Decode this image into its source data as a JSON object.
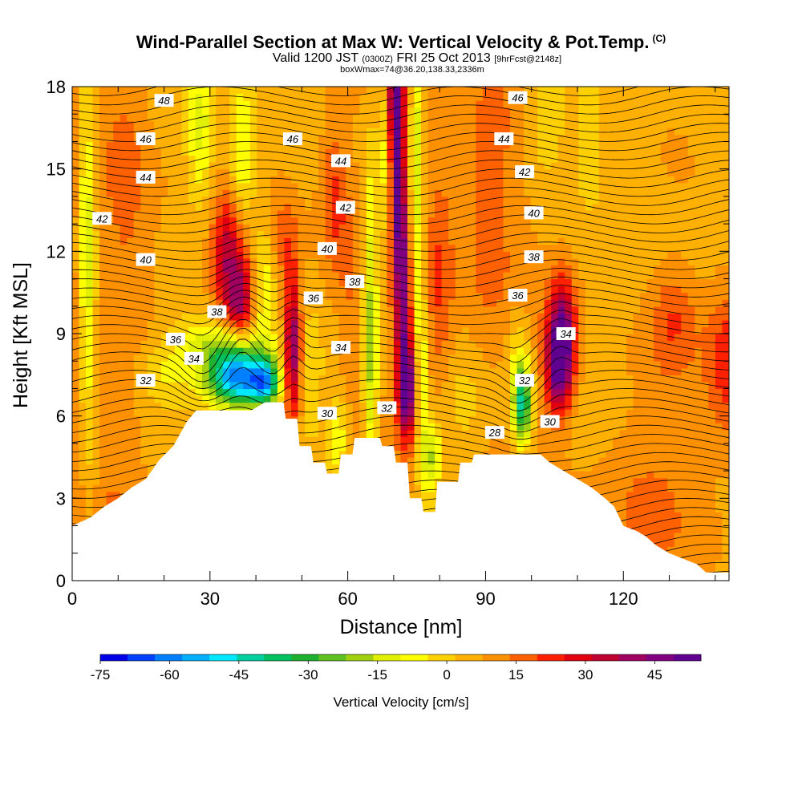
{
  "header": {
    "title": "Wind-Parallel Section at Max W: Vertical Velocity & Pot.Temp.",
    "copyright": "(C)",
    "valid_prefix": "Valid 1200 JST",
    "valid_utc": "(0300Z)",
    "valid_date": "FRI 25 Oct 2013",
    "forecast": "[9hrFcst@2148z]",
    "box_info": "boxWmax=74@36.20,138.33,2336m"
  },
  "chart_data": {
    "type": "heatmap",
    "xlabel": "Distance [nm]",
    "ylabel": "Height [Kft MSL]",
    "xlim": [
      0,
      143
    ],
    "ylim": [
      0,
      18
    ],
    "x_ticks": [
      0,
      30,
      60,
      90,
      120
    ],
    "y_ticks": [
      0,
      3,
      6,
      9,
      12,
      15,
      18
    ],
    "colorbar": {
      "title": "Vertical Velocity [cm/s]",
      "ticks": [
        "-75",
        "-60",
        "-45",
        "-30",
        "-15",
        "0",
        "15",
        "30",
        "45"
      ],
      "range": [
        -75,
        55
      ],
      "colors": [
        "#0000e8",
        "#0040ff",
        "#0080ff",
        "#00b0ff",
        "#00e8ff",
        "#00d0a0",
        "#00c060",
        "#20b030",
        "#60c020",
        "#a0d010",
        "#e0f000",
        "#ffff00",
        "#ffd000",
        "#ffb000",
        "#ff9000",
        "#ff6000",
        "#ff2000",
        "#e00010",
        "#c00030",
        "#a00060",
        "#800080",
        "#600090"
      ]
    },
    "terrain_kft": [
      [
        0,
        2.0
      ],
      [
        4,
        2.3
      ],
      [
        7,
        2.7
      ],
      [
        10,
        3.0
      ],
      [
        13,
        3.4
      ],
      [
        16,
        3.7
      ],
      [
        19,
        4.4
      ],
      [
        22,
        4.9
      ],
      [
        23,
        5.2
      ],
      [
        25,
        5.8
      ],
      [
        27,
        6.2
      ],
      [
        33,
        6.2
      ],
      [
        39,
        6.2
      ],
      [
        42,
        6.5
      ],
      [
        46,
        6.5
      ],
      [
        46.5,
        5.9
      ],
      [
        49,
        5.9
      ],
      [
        49.5,
        4.9
      ],
      [
        52,
        4.9
      ],
      [
        52.5,
        4.3
      ],
      [
        55,
        4.3
      ],
      [
        55.5,
        3.9
      ],
      [
        58,
        3.9
      ],
      [
        58.5,
        4.6
      ],
      [
        61,
        4.6
      ],
      [
        61.5,
        5.2
      ],
      [
        67,
        5.2
      ],
      [
        67.5,
        4.9
      ],
      [
        70,
        4.9
      ],
      [
        70.5,
        4.3
      ],
      [
        73,
        4.3
      ],
      [
        73.5,
        3.0
      ],
      [
        76,
        3.0
      ],
      [
        76.5,
        2.5
      ],
      [
        79,
        2.5
      ],
      [
        79.5,
        3.6
      ],
      [
        84,
        3.6
      ],
      [
        84.5,
        4.3
      ],
      [
        87,
        4.3
      ],
      [
        87.5,
        4.6
      ],
      [
        102,
        4.6
      ],
      [
        104,
        4.3
      ],
      [
        107,
        4.0
      ],
      [
        110,
        3.7
      ],
      [
        113,
        3.4
      ],
      [
        116,
        3.0
      ],
      [
        118,
        2.7
      ],
      [
        120,
        2.0
      ],
      [
        123,
        1.8
      ],
      [
        125,
        1.6
      ],
      [
        127,
        1.3
      ],
      [
        130,
        1.0
      ],
      [
        133,
        0.8
      ],
      [
        136,
        0.6
      ],
      [
        138,
        0.3
      ],
      [
        143,
        0.3
      ]
    ],
    "w_features": [
      {
        "x": 0,
        "y": 10,
        "sx": 4,
        "sy": 12,
        "w": 4
      },
      {
        "x": 3,
        "y": 13,
        "sx": 1.5,
        "sy": 6,
        "w": -18
      },
      {
        "x": 4,
        "y": 9,
        "sx": 2,
        "sy": 8,
        "w": -10
      },
      {
        "x": 12,
        "y": 14,
        "sx": 5,
        "sy": 6,
        "w": 7
      },
      {
        "x": 20,
        "y": 10,
        "sx": 5,
        "sy": 4,
        "w": 2
      },
      {
        "x": 20,
        "y": 7.5,
        "sx": 6,
        "sy": 1.2,
        "w": -12
      },
      {
        "x": 36,
        "y": 7.4,
        "sx": 7,
        "sy": 1.1,
        "w": -68
      },
      {
        "x": 42,
        "y": 7.2,
        "sx": 3,
        "sy": 0.8,
        "w": -40
      },
      {
        "x": 32,
        "y": 8.7,
        "sx": 9,
        "sy": 0.9,
        "w": -20
      },
      {
        "x": 28,
        "y": 16.5,
        "sx": 3,
        "sy": 3,
        "w": -18
      },
      {
        "x": 37,
        "y": 14,
        "sx": 3,
        "sy": 5,
        "w": -22
      },
      {
        "x": 42,
        "y": 11,
        "sx": 2.5,
        "sy": 2.5,
        "w": -18
      },
      {
        "x": 35,
        "y": 11.6,
        "sx": 4,
        "sy": 2.4,
        "w": 38
      },
      {
        "x": 37,
        "y": 10,
        "sx": 2.5,
        "sy": 1.5,
        "w": 26
      },
      {
        "x": 48,
        "y": 8.5,
        "sx": 1.8,
        "sy": 2.4,
        "w": 42
      },
      {
        "x": 46,
        "y": 12.3,
        "sx": 4,
        "sy": 1.8,
        "w": 11
      },
      {
        "x": 52,
        "y": 7,
        "sx": 2.5,
        "sy": 2.5,
        "w": -8
      },
      {
        "x": 57,
        "y": 14,
        "sx": 3,
        "sy": 3,
        "w": 15
      },
      {
        "x": 60,
        "y": 10,
        "sx": 2,
        "sy": 4,
        "w": 6
      },
      {
        "x": 58,
        "y": 5.2,
        "sx": 2.5,
        "sy": 1.5,
        "w": -16
      },
      {
        "x": 65,
        "y": 8,
        "sx": 1.6,
        "sy": 5,
        "w": -24
      },
      {
        "x": 65,
        "y": 13,
        "sx": 1.5,
        "sy": 4,
        "w": -10
      },
      {
        "x": 68,
        "y": 15.5,
        "sx": 1.5,
        "sy": 4,
        "w": -14
      },
      {
        "x": 70.5,
        "y": 17.5,
        "sx": 1.6,
        "sy": 2,
        "w": 46
      },
      {
        "x": 71,
        "y": 14,
        "sx": 1.7,
        "sy": 3,
        "w": 38
      },
      {
        "x": 72,
        "y": 10,
        "sx": 1.8,
        "sy": 3,
        "w": 34
      },
      {
        "x": 73,
        "y": 7,
        "sx": 2,
        "sy": 1.8,
        "w": 44
      },
      {
        "x": 75,
        "y": 15,
        "sx": 1.4,
        "sy": 5,
        "w": -22
      },
      {
        "x": 76,
        "y": 8,
        "sx": 1.5,
        "sy": 3,
        "w": -16
      },
      {
        "x": 78,
        "y": 4.5,
        "sx": 2.5,
        "sy": 1.5,
        "w": -25
      },
      {
        "x": 80,
        "y": 11,
        "sx": 3,
        "sy": 5,
        "w": 14
      },
      {
        "x": 85,
        "y": 6.5,
        "sx": 5,
        "sy": 1.6,
        "w": -6
      },
      {
        "x": 90,
        "y": 14,
        "sx": 6,
        "sy": 5,
        "w": 10
      },
      {
        "x": 98,
        "y": 6.4,
        "sx": 2,
        "sy": 1.4,
        "w": -45
      },
      {
        "x": 97,
        "y": 8,
        "sx": 2.5,
        "sy": 2,
        "w": -12
      },
      {
        "x": 106,
        "y": 8,
        "sx": 2.8,
        "sy": 1.8,
        "w": 50
      },
      {
        "x": 107,
        "y": 9.5,
        "sx": 3,
        "sy": 2,
        "w": 22
      },
      {
        "x": 103,
        "y": 17,
        "sx": 4,
        "sy": 2.2,
        "w": -12
      },
      {
        "x": 112,
        "y": 16.5,
        "sx": 4,
        "sy": 2.5,
        "w": -6
      },
      {
        "x": 124,
        "y": 14,
        "sx": 8,
        "sy": 6,
        "w": -4
      },
      {
        "x": 131,
        "y": 9.5,
        "sx": 5,
        "sy": 2,
        "w": 12
      },
      {
        "x": 143,
        "y": 8,
        "sx": 5,
        "sy": 3,
        "w": 18
      },
      {
        "x": 125,
        "y": 3,
        "sx": 15,
        "sy": 3,
        "w": 6
      },
      {
        "x": 10,
        "y": 3,
        "sx": 8,
        "sy": 2,
        "w": 5
      }
    ],
    "theta_contours": {
      "levels_shown": [
        28,
        30,
        32,
        34,
        36,
        38,
        40,
        42,
        44,
        46,
        48
      ],
      "labels": [
        {
          "text": "48",
          "x": 20,
          "y": 17.5
        },
        {
          "text": "46",
          "x": 16,
          "y": 16.1
        },
        {
          "text": "44",
          "x": 16,
          "y": 14.7
        },
        {
          "text": "42",
          "x": 6.5,
          "y": 13.2
        },
        {
          "text": "40",
          "x": 16,
          "y": 11.7
        },
        {
          "text": "38",
          "x": 31.5,
          "y": 9.8
        },
        {
          "text": "36",
          "x": 22.5,
          "y": 8.8
        },
        {
          "text": "34",
          "x": 26.5,
          "y": 8.1
        },
        {
          "text": "32",
          "x": 16,
          "y": 7.3
        },
        {
          "text": "46",
          "x": 48,
          "y": 16.1
        },
        {
          "text": "44",
          "x": 58.5,
          "y": 15.3
        },
        {
          "text": "42",
          "x": 59.5,
          "y": 13.6
        },
        {
          "text": "40",
          "x": 55.5,
          "y": 12.1
        },
        {
          "text": "38",
          "x": 61.5,
          "y": 10.9
        },
        {
          "text": "36",
          "x": 52.5,
          "y": 10.3
        },
        {
          "text": "34",
          "x": 58.5,
          "y": 8.5
        },
        {
          "text": "30",
          "x": 55.5,
          "y": 6.1
        },
        {
          "text": "32",
          "x": 68.5,
          "y": 6.3
        },
        {
          "text": "46",
          "x": 97,
          "y": 17.6
        },
        {
          "text": "44",
          "x": 94,
          "y": 16.1
        },
        {
          "text": "42",
          "x": 98.5,
          "y": 14.9
        },
        {
          "text": "40",
          "x": 100.5,
          "y": 13.4
        },
        {
          "text": "38",
          "x": 100.5,
          "y": 11.8
        },
        {
          "text": "36",
          "x": 97,
          "y": 10.4
        },
        {
          "text": "34",
          "x": 107.5,
          "y": 9.0
        },
        {
          "text": "32",
          "x": 98.5,
          "y": 7.3
        },
        {
          "text": "30",
          "x": 104,
          "y": 5.8
        },
        {
          "text": "28",
          "x": 92,
          "y": 5.4
        }
      ]
    }
  }
}
